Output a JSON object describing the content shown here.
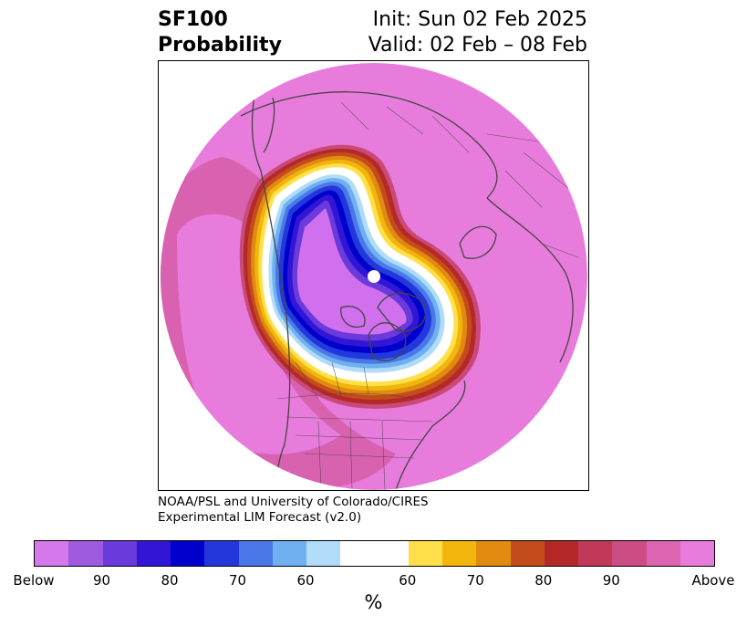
{
  "header": {
    "title_line1": "SF100",
    "title_line2": "Probability",
    "init_text": "Init: Sun 02 Feb 2025",
    "valid_text": "Valid: 02 Feb – 08 Feb"
  },
  "credit": {
    "line1": "NOAA/PSL and University of Colorado/CIRES",
    "line2": "Experimental LIM Forecast (v2.0)"
  },
  "map": {
    "projection": "north-polar-stereographic",
    "colors": {
      "above_max": "#e87cdc",
      "above_90": "#d862b0",
      "above_85": "#c94a78",
      "above_80": "#b52828",
      "above_75": "#c44c1c",
      "above_70": "#e08a12",
      "above_65": "#f2b50c",
      "above_60": "#ffe04a",
      "neutral": "#ffffff",
      "below_60": "#b0dcfa",
      "below_65": "#70b0f0",
      "below_70": "#4a78e8",
      "below_75": "#2238dc",
      "below_80": "#0000cc",
      "below_85": "#3216d6",
      "below_90": "#6a3ada",
      "below_max": "#d070ee",
      "coastline": "#444444",
      "pole_hole": "#ffffff"
    }
  },
  "colorbar": {
    "cells": [
      {
        "color": "#d478ec"
      },
      {
        "color": "#a05ae0"
      },
      {
        "color": "#6a3ada"
      },
      {
        "color": "#3216d6"
      },
      {
        "color": "#0000cc"
      },
      {
        "color": "#2238dc"
      },
      {
        "color": "#4a78e8"
      },
      {
        "color": "#70b0f0"
      },
      {
        "color": "#b0dcfa"
      },
      {
        "color": "#ffffff",
        "wide": true
      },
      {
        "color": "#ffe04a"
      },
      {
        "color": "#f2b50c"
      },
      {
        "color": "#e08a12"
      },
      {
        "color": "#c44c1c"
      },
      {
        "color": "#b52828"
      },
      {
        "color": "#c23858"
      },
      {
        "color": "#cc4c84"
      },
      {
        "color": "#dc64b0"
      },
      {
        "color": "#e87cdc"
      }
    ],
    "ticks": [
      "Below",
      "90",
      "80",
      "70",
      "60",
      "60",
      "70",
      "80",
      "90",
      "Above"
    ],
    "unit": "%"
  }
}
